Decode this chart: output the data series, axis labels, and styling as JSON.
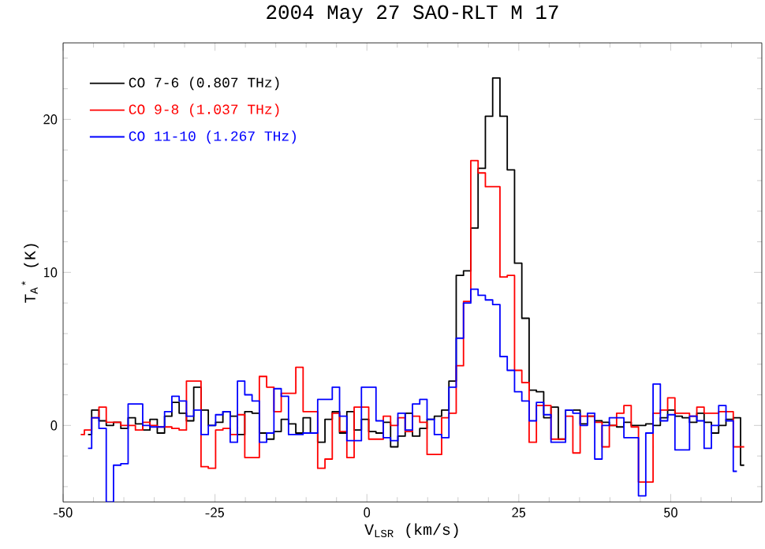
{
  "chart_data": {
    "type": "step",
    "title": "2004 May 27   SAO-RLT      M 17",
    "xlabel": "V$_{LSR}$ (km/s)",
    "ylabel": "T$_{A}$$^{*}$ (K)",
    "x": [
      -47.1,
      -45.9,
      -44.7,
      -43.5,
      -42.3,
      -41.1,
      -39.9,
      -38.7,
      -37.5,
      -36.3,
      -35.1,
      -33.9,
      -32.7,
      -31.5,
      -30.3,
      -29.1,
      -27.9,
      -26.7,
      -25.5,
      -24.3,
      -23.1,
      -21.9,
      -20.7,
      -19.5,
      -18.3,
      -17.1,
      -15.9,
      -14.7,
      -13.5,
      -12.3,
      -11.1,
      -9.9,
      -8.7,
      -7.5,
      -6.3,
      -5.1,
      -3.9,
      -2.7,
      -1.5,
      -0.3,
      0.9,
      2.1,
      3.3,
      4.5,
      5.7,
      6.9,
      8.1,
      9.3,
      10.5,
      11.7,
      12.9,
      14.1,
      15.3,
      16.5,
      17.7,
      18.9,
      20.1,
      21.3,
      22.5,
      23.7,
      24.9,
      26.1,
      27.3,
      28.5,
      29.7,
      30.9,
      32.1,
      33.3,
      34.5,
      35.7,
      36.9,
      38.1,
      39.3,
      40.5,
      41.7,
      42.9,
      44.1,
      45.3,
      46.5,
      47.7,
      48.9,
      50.1,
      51.3,
      52.5,
      53.7,
      54.9,
      56.1,
      57.3,
      58.5,
      59.7,
      60.9,
      62.1
    ],
    "series": [
      {
        "name": "CO 7-6 (0.807 THz)",
        "color": "#000000",
        "values": [
          null,
          -0.6,
          1.0,
          0.3,
          0.0,
          0.2,
          -0.2,
          0.5,
          0.1,
          -0.3,
          0.4,
          -0.5,
          0.6,
          1.5,
          0.8,
          0.3,
          2.5,
          1.0,
          0.0,
          0.2,
          0.9,
          0.6,
          -0.6,
          0.9,
          0.8,
          -0.5,
          -0.9,
          -0.4,
          0.4,
          0.1,
          -0.5,
          0.5,
          -0.5,
          -1.1,
          0.4,
          0.9,
          -0.5,
          0.9,
          -0.3,
          0.4,
          -0.4,
          -0.5,
          0.2,
          -1.4,
          -0.7,
          0.8,
          -0.7,
          -0.2,
          0.4,
          0.6,
          1.0,
          2.9,
          9.8,
          10.1,
          12.9,
          16.8,
          20.2,
          22.7,
          20.2,
          16.7,
          10.6,
          7.0,
          2.3,
          2.2,
          0.5,
          1.2,
          -0.9,
          1.0,
          1.0,
          0.1,
          0.6,
          0.3,
          0.2,
          0.0,
          -0.1,
          0.2,
          0.0,
          0.0,
          0.1,
          0.0,
          0.5,
          1.0,
          0.6,
          0.5,
          0.2,
          0.8,
          0.2,
          -0.5,
          0.0,
          0.4,
          0.5,
          -2.6
        ]
      },
      {
        "name": "CO 9-8 (1.037 THz)",
        "color": "#ff0000",
        "values": [
          -0.6,
          -0.3,
          0.5,
          1.2,
          0.2,
          0.2,
          0.0,
          0.0,
          -0.3,
          0.2,
          0.0,
          -0.1,
          -0.1,
          -0.2,
          -0.3,
          2.9,
          2.9,
          -2.7,
          -2.8,
          -0.3,
          -0.2,
          -0.6,
          0.7,
          -2.1,
          -2.1,
          3.2,
          2.5,
          0.9,
          2.1,
          2.1,
          3.8,
          0.9,
          0.9,
          -2.8,
          -2.2,
          0.8,
          -0.4,
          -2.1,
          1.2,
          1.2,
          -0.9,
          -0.9,
          0.6,
          0.0,
          0.5,
          -0.4,
          0.6,
          0.2,
          -1.9,
          -1.9,
          0.5,
          0.8,
          3.9,
          8.1,
          17.3,
          16.5,
          15.6,
          15.6,
          9.7,
          9.8,
          3.6,
          2.8,
          -1.1,
          1.3,
          1.3,
          -0.9,
          -0.9,
          0.6,
          -1.8,
          0.6,
          0.6,
          0.2,
          -1.4,
          0.0,
          0.8,
          1.3,
          -0.1,
          -3.7,
          -3.7,
          0.8,
          1.0,
          1.8,
          0.8,
          0.8,
          0.6,
          1.2,
          0.8,
          0.8,
          0.9,
          0.9,
          -1.4,
          -1.4
        ]
      },
      {
        "name": "CO 11-10 (1.267 THz)",
        "color": "#0000ff",
        "values": [
          null,
          -1.5,
          0.5,
          -0.2,
          -5.0,
          -2.6,
          -2.5,
          1.4,
          1.4,
          0.0,
          -0.1,
          -0.1,
          0.9,
          1.9,
          1.6,
          0.6,
          1.0,
          -0.6,
          0.0,
          0.7,
          0.9,
          -1.1,
          2.9,
          2.0,
          1.6,
          -1.1,
          -0.5,
          2.4,
          1.9,
          -0.6,
          -0.6,
          -0.5,
          -0.5,
          1.7,
          1.7,
          2.5,
          0.6,
          -1.0,
          -1.0,
          2.5,
          2.5,
          0.3,
          -0.8,
          -1.0,
          0.8,
          -0.3,
          1.4,
          1.7,
          0.4,
          -0.6,
          -0.8,
          2.5,
          5.7,
          8.0,
          8.9,
          8.5,
          8.2,
          7.9,
          4.5,
          3.6,
          2.2,
          1.6,
          0.3,
          1.5,
          0.7,
          -1.1,
          -1.1,
          1.0,
          0.8,
          0.0,
          0.8,
          -2.2,
          0.0,
          0.5,
          0.5,
          -0.8,
          -0.8,
          -4.6,
          -0.5,
          2.7,
          0.3,
          0.7,
          -1.6,
          -1.6,
          0.6,
          0.3,
          -1.5,
          0.0,
          1.3,
          0.3,
          -3.0,
          null
        ]
      }
    ],
    "xlim": [
      -50,
      65
    ],
    "ylim": [
      -5,
      25
    ],
    "xticks": [
      -50,
      {
        "value": -45,
        "label": null
      },
      {
        "value": -40,
        "label": null
      },
      {
        "value": -35,
        "label": null
      },
      {
        "value": -30,
        "label": null
      },
      -25,
      {
        "value": -20,
        "label": null
      },
      {
        "value": -15,
        "label": null
      },
      {
        "value": -10,
        "label": null
      },
      {
        "value": -5,
        "label": null
      },
      0,
      {
        "value": 5,
        "label": null
      },
      {
        "value": 10,
        "label": null
      },
      {
        "value": 15,
        "label": null
      },
      {
        "value": 20,
        "label": null
      },
      25,
      {
        "value": 30,
        "label": null
      },
      {
        "value": 35,
        "label": null
      },
      {
        "value": 40,
        "label": null
      },
      {
        "value": 45,
        "label": null
      },
      50,
      {
        "value": 55,
        "label": null
      },
      {
        "value": 60,
        "label": null
      }
    ],
    "yticks": [
      {
        "value": -4,
        "label": null
      },
      {
        "value": -2,
        "label": null
      },
      0,
      {
        "value": 2,
        "label": null
      },
      {
        "value": 4,
        "label": null
      },
      {
        "value": 6,
        "label": null
      },
      {
        "value": 8,
        "label": null
      },
      10,
      {
        "value": 12,
        "label": null
      },
      {
        "value": 14,
        "label": null
      },
      {
        "value": 16,
        "label": null
      },
      {
        "value": 18,
        "label": null
      },
      20,
      {
        "value": 22,
        "label": null
      },
      {
        "value": 24,
        "label": null
      }
    ],
    "grid": false,
    "legend": "top left",
    "line_style": "solid"
  }
}
